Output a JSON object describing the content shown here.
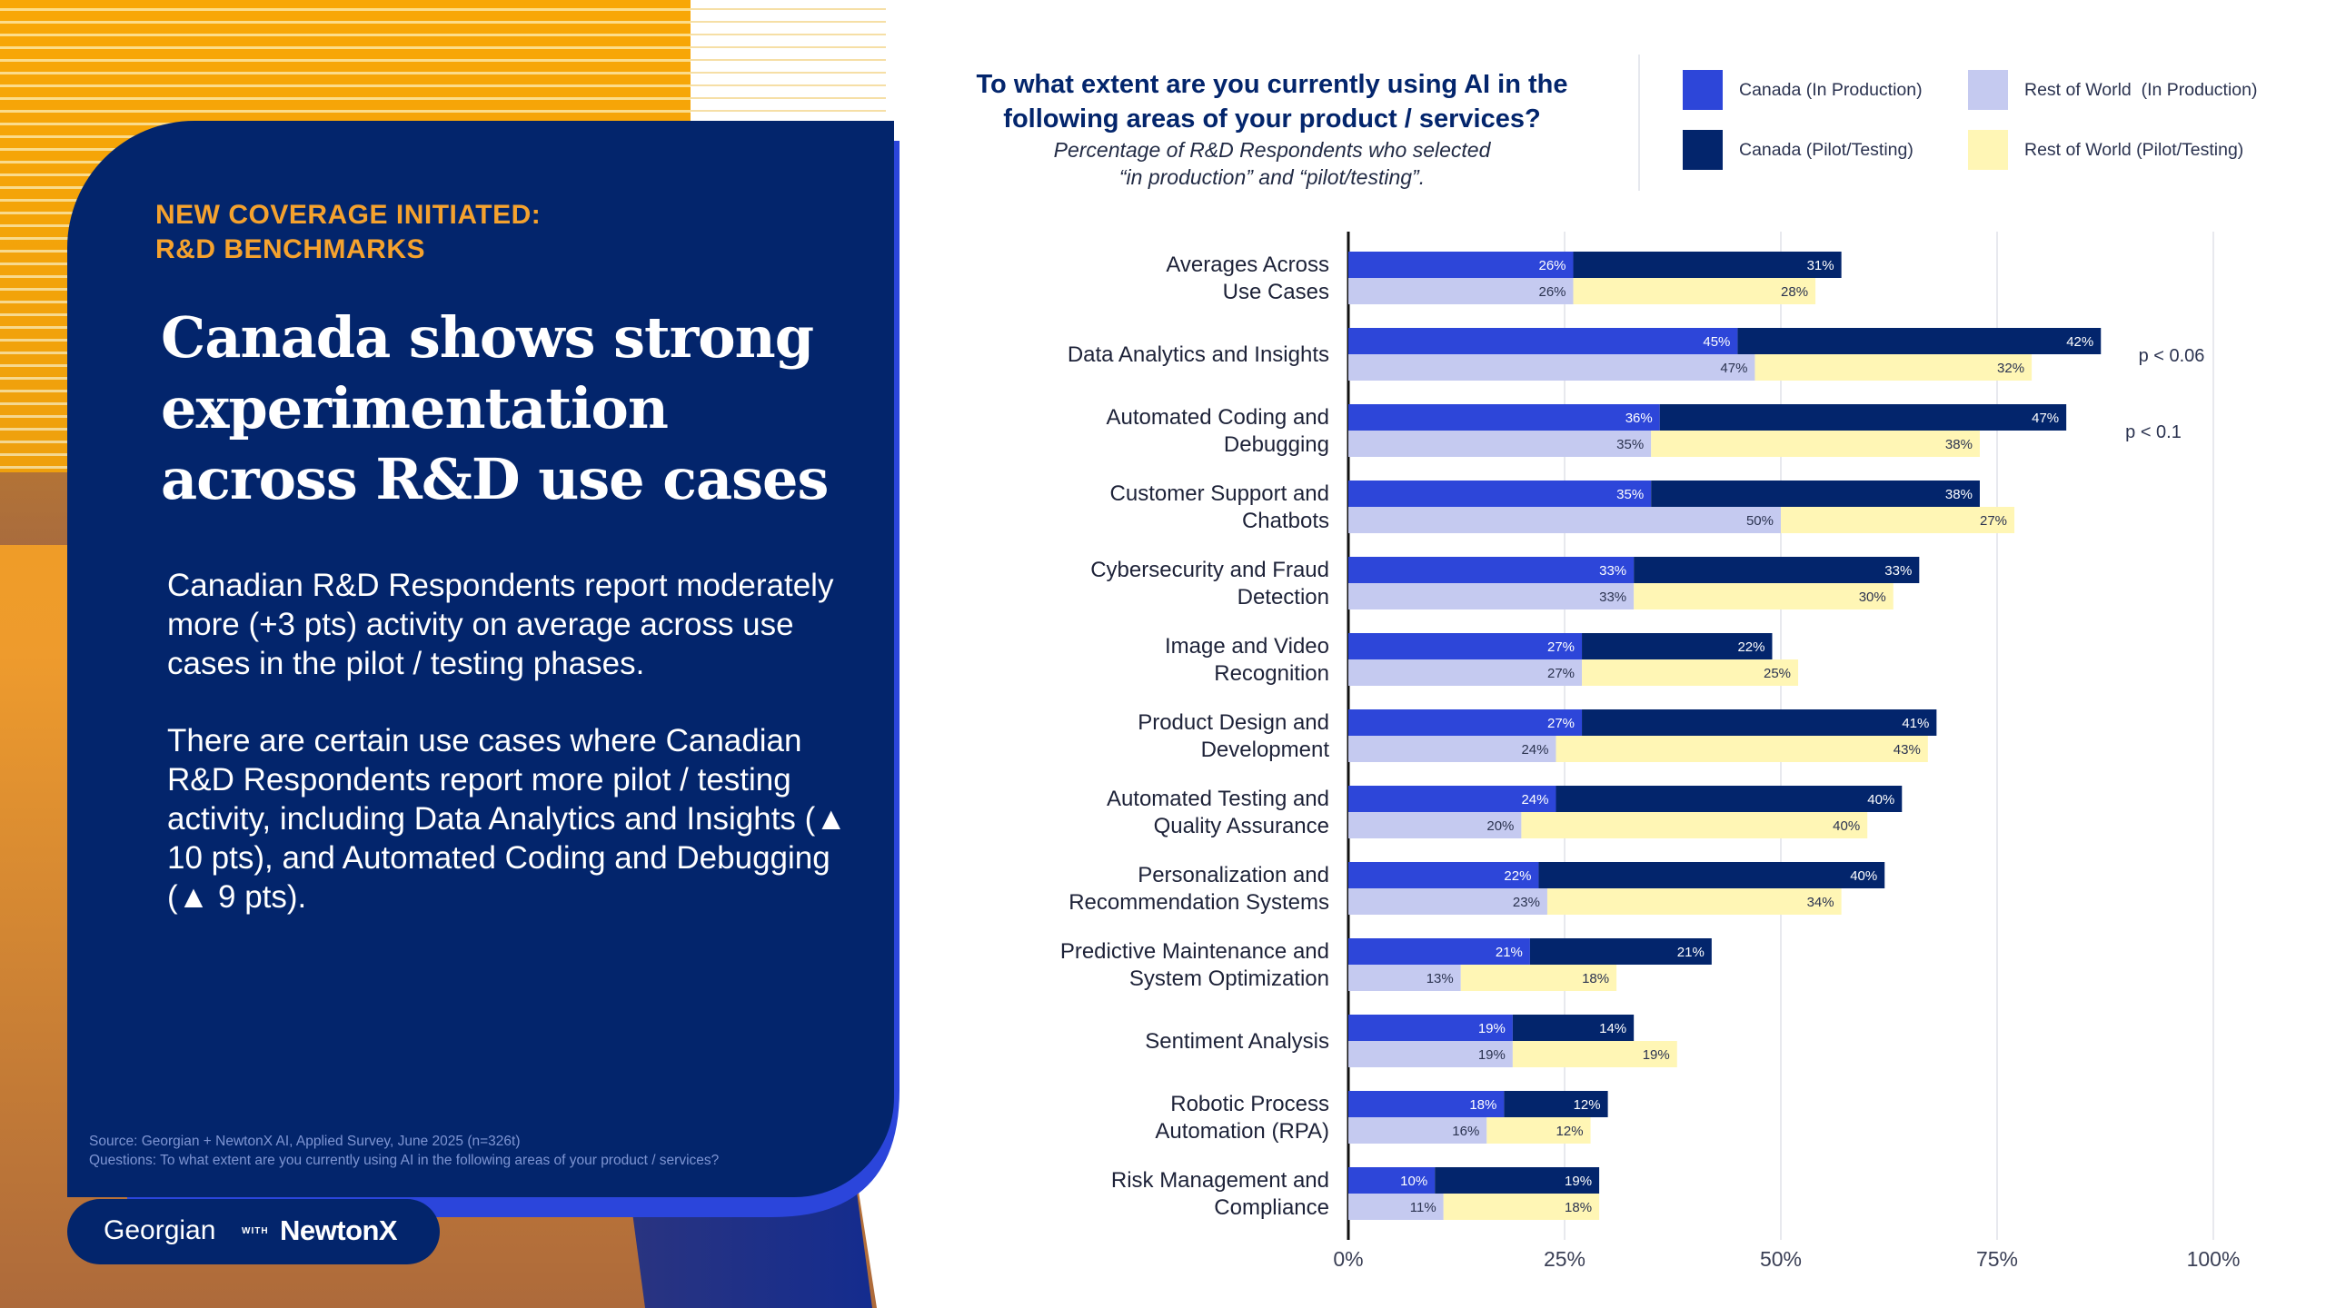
{
  "colors": {
    "navy": "#03256C",
    "accent_orange": "#F5A22E",
    "canada_production": "#2D46D9",
    "canada_pilot": "#03256C",
    "row_production": "#C5CAF0",
    "row_pilot": "#FFF6B5",
    "white": "#ffffff"
  },
  "left": {
    "kicker_lines": [
      "NEW COVERAGE INITIATED:",
      "R&D BENCHMARKS"
    ],
    "headline_lines": [
      "Canada shows strong",
      "experimentation",
      "across R&D use cases"
    ],
    "paragraph_1": "Canadian R&D Respondents report moderately more (+3 pts) activity on average across use cases in the pilot / testing phases.",
    "paragraph_2": "There are certain use cases where Canadian R&D Respondents report more pilot / testing activity, including Data Analytics and Insights (▲ 10 pts), and Automated Coding and Debugging (▲ 9 pts).",
    "source_line": "Source: Georgian + NewtonX AI, Applied Survey, June 2025 (n=326t)",
    "questions_line": "Questions: To what extent are you currently using AI in the following areas of your product / services?"
  },
  "logo": {
    "georgian": "Georgian",
    "with": "WITH",
    "newtonx": "NewtonX"
  },
  "chart_data": {
    "type": "bar",
    "orientation": "horizontal-stacked",
    "title_lines": [
      "To what extent are you currently using AI in the",
      "following areas of your product / services?"
    ],
    "subtitle_lines": [
      "Percentage of R&D Respondents who selected",
      "“in production” and “pilot/testing”."
    ],
    "legend": [
      {
        "key": "canada_production",
        "label": "Canada (In Production)"
      },
      {
        "key": "row_production",
        "label": "Rest of World  (In Production)"
      },
      {
        "key": "canada_pilot",
        "label": "Canada (Pilot/Testing)"
      },
      {
        "key": "row_pilot",
        "label": "Rest of World (Pilot/Testing)"
      }
    ],
    "categories": [
      [
        "Averages Across",
        "Use Cases"
      ],
      [
        "Data Analytics and Insights"
      ],
      [
        "Automated Coding and",
        "Debugging"
      ],
      [
        "Customer Support and",
        "Chatbots"
      ],
      [
        "Cybersecurity and Fraud",
        "Detection"
      ],
      [
        "Image and Video",
        "Recognition"
      ],
      [
        "Product Design and",
        "Development"
      ],
      [
        "Automated Testing and",
        "Quality Assurance"
      ],
      [
        "Personalization and",
        "Recommendation Systems"
      ],
      [
        "Predictive Maintenance and",
        "System Optimization"
      ],
      [
        "Sentiment Analysis"
      ],
      [
        "Robotic Process",
        "Automation (RPA)"
      ],
      [
        "Risk Management and",
        "Compliance"
      ]
    ],
    "series": [
      {
        "name": "Canada (In Production)",
        "key": "canada_production",
        "group": "Canada",
        "values": [
          26,
          45,
          36,
          35,
          33,
          27,
          27,
          24,
          22,
          21,
          19,
          18,
          10
        ]
      },
      {
        "name": "Canada (Pilot/Testing)",
        "key": "canada_pilot",
        "group": "Canada",
        "values": [
          31,
          42,
          47,
          38,
          33,
          22,
          41,
          40,
          40,
          21,
          14,
          12,
          19
        ]
      },
      {
        "name": "Rest of World (In Production)",
        "key": "row_production",
        "group": "Rest of World",
        "values": [
          26,
          47,
          35,
          50,
          33,
          27,
          24,
          20,
          23,
          13,
          19,
          16,
          11
        ]
      },
      {
        "name": "Rest of World (Pilot/Testing)",
        "key": "row_pilot",
        "group": "Rest of World",
        "values": [
          28,
          32,
          38,
          27,
          30,
          25,
          43,
          40,
          34,
          18,
          19,
          12,
          18
        ]
      }
    ],
    "annotations": [
      {
        "category_index": 1,
        "text": "p < 0.06"
      },
      {
        "category_index": 2,
        "text": "p < 0.1"
      }
    ],
    "x_ticks": [
      0,
      25,
      50,
      75,
      100
    ],
    "x_tick_labels": [
      "0%",
      "25%",
      "50%",
      "75%",
      "100%"
    ],
    "xlim": [
      0,
      100
    ],
    "value_suffix": "%",
    "grid": true
  }
}
